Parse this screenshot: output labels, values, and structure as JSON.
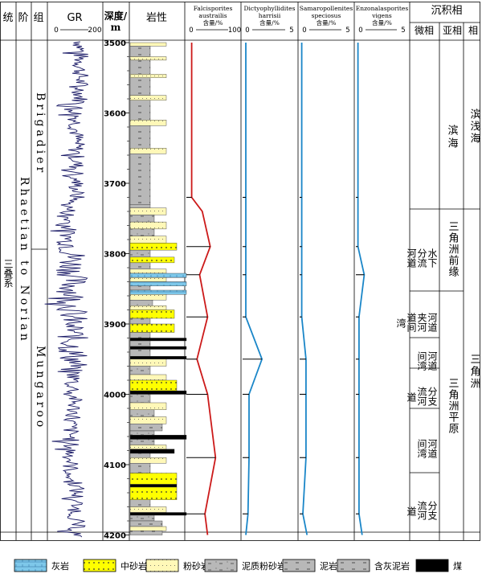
{
  "headers": {
    "system": "统",
    "stage": "阶",
    "formation": "组",
    "gr": "GR",
    "gr_min": "0",
    "gr_max": "200",
    "depth": "深度/",
    "depth_unit": "m",
    "lithology": "岩性",
    "facies": "沉积相",
    "micro": "微相",
    "sub": "亚相",
    "main": "相"
  },
  "units": {
    "system": "三叠系",
    "stage": "Rhaetian to Norian",
    "formation_upper": "Brigadier",
    "formation_lower": "Mungaroo"
  },
  "depth_ticks": [
    "3500",
    "3600",
    "3700",
    "3800",
    "3900",
    "4000",
    "4100",
    "4200"
  ],
  "pollen": [
    {
      "name1": "Falcisporites",
      "name2": "austrailis",
      "unit": "含量/%",
      "min": "0",
      "max": "100",
      "color": "#cc1a1a"
    },
    {
      "name1": "Dictyophyllidites",
      "name2": "harrisii",
      "unit": "含量/%",
      "min": "0",
      "max": "5",
      "color": "#1a86c8"
    },
    {
      "name1": "Samaropollenites",
      "name2": "speciosus",
      "unit": "含量/%",
      "min": "0",
      "max": "5",
      "color": "#1a86c8"
    },
    {
      "name1": "Enzonalasporites",
      "name2": "vigens",
      "unit": "含量/%",
      "min": "0",
      "max": "5",
      "color": "#1a86c8"
    }
  ],
  "facies_main": [
    "滨浅海",
    "三角洲"
  ],
  "facies_sub": [
    "滨海",
    "三角洲前缘",
    "三角洲平原"
  ],
  "facies_micro": [
    "水下分流河道",
    "河道间",
    "分流河道",
    "河道间",
    "分流河道",
    "河道间",
    "分流河道"
  ],
  "micro_display": [
    [
      "水下",
      "分流",
      "河道"
    ],
    [
      "河道",
      "夹河",
      "道间",
      "湾"
    ],
    [
      "河道",
      "间湾"
    ],
    [
      "分支",
      "流河",
      "道"
    ],
    [
      "河道",
      "间湾"
    ],
    [
      "分支",
      "流河",
      "道"
    ]
  ],
  "legend": [
    {
      "label": "灰岩",
      "swatch": "limestone"
    },
    {
      "label": "中砂岩",
      "swatch": "medium-sand"
    },
    {
      "label": "粉砂岩",
      "swatch": "siltstone"
    },
    {
      "label": "泥质粉砂岩",
      "swatch": "muddy-silt"
    },
    {
      "label": "泥岩",
      "swatch": "mudstone"
    },
    {
      "label": "含灰泥岩",
      "swatch": "calc-mud"
    },
    {
      "label": "煤",
      "swatch": "coal"
    }
  ]
}
